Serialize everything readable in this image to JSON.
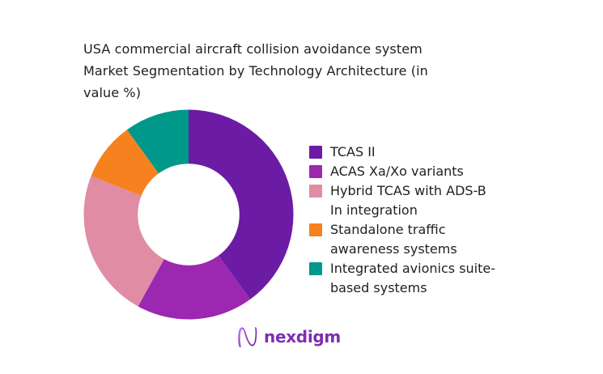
{
  "title": "USA commercial aircraft collision avoidance system\nMarket Segmentation by Technology Architecture (in\nvalue %)",
  "text_color": "#212121",
  "background_color": "#ffffff",
  "chart_data": {
    "type": "pie",
    "subtype": "donut",
    "title": "USA commercial aircraft collision avoidance system Market Segmentation by Technology Architecture (in value %)",
    "unit": "value %",
    "labels": [
      "TCAS II",
      "ACAS Xa/Xo variants",
      "Hybrid TCAS with ADS-B In integration",
      "Standalone traffic awareness systems",
      "Integrated avionics suite-based systems"
    ],
    "values": [
      40,
      18,
      23,
      9,
      10
    ],
    "colors": [
      "#6c1ca4",
      "#9c27b0",
      "#e08ca4",
      "#f5821f",
      "#00988b"
    ],
    "start_angle_deg": 0,
    "direction": "clockwise",
    "inner_radius_ratio": 0.485,
    "data_labels_visible": false,
    "legend_position": "right",
    "legend_labels_wrapped": [
      "TCAS II",
      "ACAS Xa/Xo variants",
      "Hybrid TCAS with ADS-B\nIn integration",
      "Standalone traffic\nawareness systems",
      "Integrated avionics suite-\nbased systems"
    ]
  },
  "logo": {
    "wordmark": "nexdigm",
    "wordmark_color": "#7d2eb0",
    "icon": "nexdigm-n-icon",
    "icon_color_start": "#b44fe8",
    "icon_color_end": "#5c0f9b"
  }
}
